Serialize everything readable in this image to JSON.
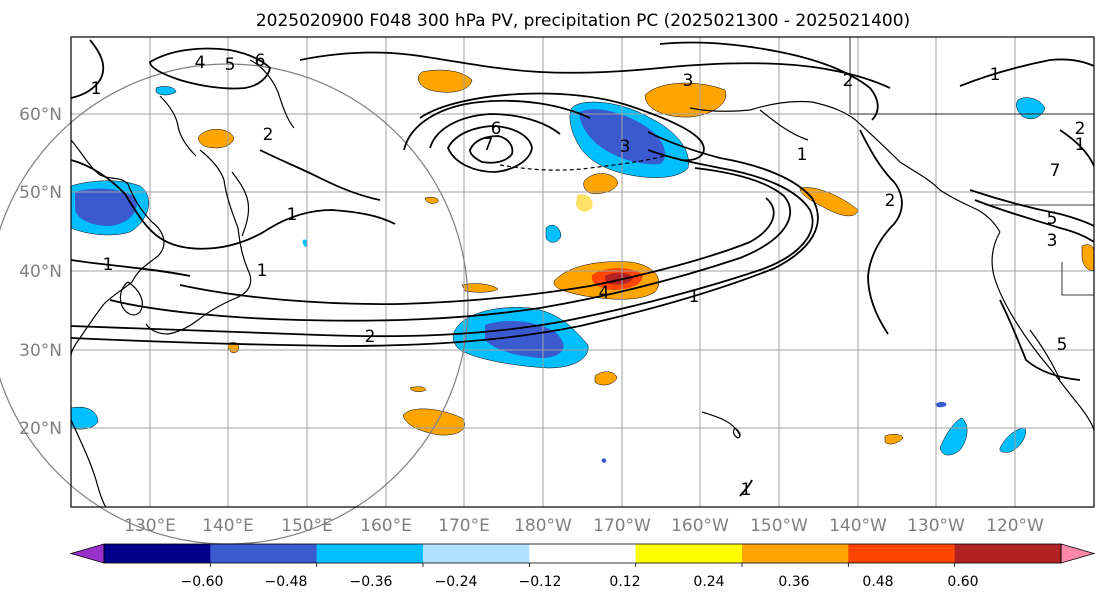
{
  "title": "2025020900 F048 300 hPa PV, precipitation PC (2025021300 - 2025021400)",
  "latitude_labels": [
    "60°N",
    "50°N",
    "40°N",
    "30°N",
    "20°N"
  ],
  "longitude_labels": [
    "130°E",
    "140°E",
    "150°E",
    "160°E",
    "170°E",
    "180°W",
    "170°W",
    "160°W",
    "150°W",
    "140°W",
    "130°W",
    "120°W"
  ],
  "colorbar": {
    "colors": [
      "#9932cc",
      "#00008b",
      "#3a5bd0",
      "#00bfff",
      "#b0e0ff",
      "#ffffff",
      "#ffff00",
      "#ffa500",
      "#ff4500",
      "#b22222",
      "#ff88aa"
    ],
    "tick_labels": [
      "−0.60",
      "−0.48",
      "−0.36",
      "−0.24",
      "−0.12",
      "0.12",
      "0.24",
      "0.36",
      "0.48",
      "0.60"
    ]
  },
  "contour_labels": [
    "1",
    "2",
    "3",
    "4",
    "5",
    "6",
    "7",
    "1",
    "2",
    "1",
    "1",
    "1",
    "2",
    "3",
    "4",
    "5",
    "6",
    "7",
    "1",
    "2",
    "3",
    "5",
    "1",
    "2",
    "1",
    "1"
  ],
  "colors": {
    "map_frame": "#000000",
    "grid": "#a0a0a0",
    "coast": "#000000",
    "contour": "#000000",
    "circle": "#808080"
  }
}
